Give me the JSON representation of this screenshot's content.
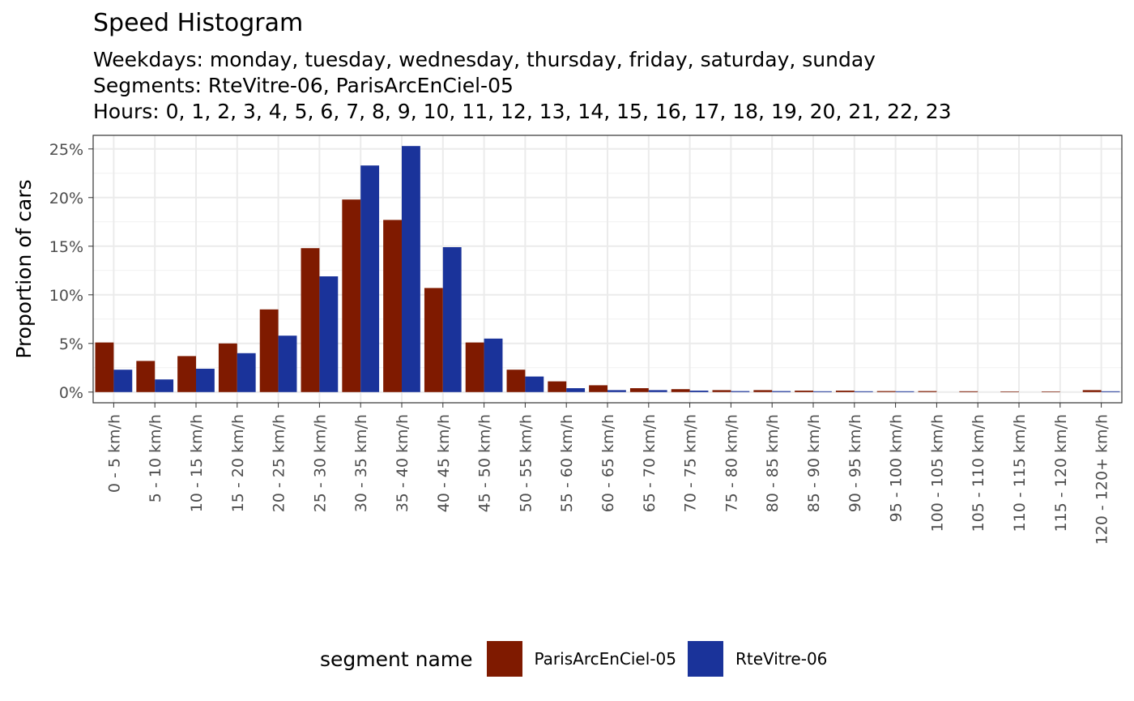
{
  "chart_data": {
    "type": "bar",
    "title": "Speed Histogram",
    "subtitles": [
      "Weekdays: monday, tuesday, wednesday, thursday, friday, saturday, sunday",
      "Segments: RteVitre-06, ParisArcEnCiel-05",
      "Hours: 0, 1, 2, 3, 4, 5, 6, 7, 8, 9, 10, 11, 12, 13, 14, 15, 16, 17, 18, 19, 20, 21, 22, 23"
    ],
    "xlabel": "",
    "ylabel": "Proportion of cars",
    "ylim": [
      0,
      0.26
    ],
    "yticks": [
      0,
      0.05,
      0.1,
      0.15,
      0.2,
      0.25
    ],
    "ytick_labels": [
      "0%",
      "5%",
      "10%",
      "15%",
      "20%",
      "25%"
    ],
    "grid": true,
    "legend_title": "segment name",
    "legend_position": "bottom",
    "categories": [
      "0 - 5 km/h",
      "5 - 10 km/h",
      "10 - 15 km/h",
      "15 - 20 km/h",
      "20 - 25 km/h",
      "25 - 30 km/h",
      "30 - 35 km/h",
      "35 - 40 km/h",
      "40 - 45 km/h",
      "45 - 50 km/h",
      "50 - 55 km/h",
      "55 - 60 km/h",
      "60 - 65 km/h",
      "65 - 70 km/h",
      "70 - 75 km/h",
      "75 - 80 km/h",
      "80 - 85 km/h",
      "85 - 90 km/h",
      "90 - 95 km/h",
      "95 - 100 km/h",
      "100 - 105 km/h",
      "105 - 110 km/h",
      "110 - 115 km/h",
      "115 - 120 km/h",
      "120 - 120+ km/h"
    ],
    "series": [
      {
        "name": "ParisArcEnCiel-05",
        "color": "#7f1a00",
        "values": [
          0.051,
          0.032,
          0.037,
          0.05,
          0.085,
          0.148,
          0.198,
          0.177,
          0.107,
          0.051,
          0.023,
          0.011,
          0.007,
          0.004,
          0.003,
          0.002,
          0.002,
          0.0015,
          0.0015,
          0.001,
          0.001,
          0.0008,
          0.0006,
          0.0006,
          0.002
        ]
      },
      {
        "name": "RteVitre-06",
        "color": "#1a339a",
        "values": [
          0.023,
          0.013,
          0.024,
          0.04,
          0.058,
          0.119,
          0.233,
          0.253,
          0.149,
          0.055,
          0.016,
          0.004,
          0.002,
          0.002,
          0.0015,
          0.001,
          0.001,
          0.0008,
          0.0008,
          0.0008,
          0.0,
          0.0,
          0.0,
          0.0,
          0.0008
        ]
      }
    ]
  }
}
